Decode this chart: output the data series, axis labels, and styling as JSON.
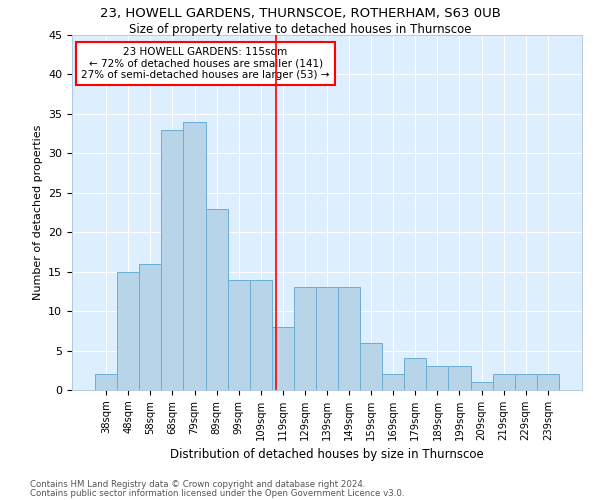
{
  "title1": "23, HOWELL GARDENS, THURNSCOE, ROTHERHAM, S63 0UB",
  "title2": "Size of property relative to detached houses in Thurnscoe",
  "xlabel": "Distribution of detached houses by size in Thurnscoe",
  "ylabel": "Number of detached properties",
  "bar_values": [
    2,
    15,
    16,
    33,
    34,
    23,
    14,
    14,
    8,
    13,
    13,
    13,
    6,
    2,
    4,
    3,
    3,
    1,
    2,
    2,
    2
  ],
  "bin_labels": [
    "38sqm",
    "48sqm",
    "58sqm",
    "68sqm",
    "79sqm",
    "89sqm",
    "99sqm",
    "109sqm",
    "119sqm",
    "129sqm",
    "139sqm",
    "149sqm",
    "159sqm",
    "169sqm",
    "179sqm",
    "189sqm",
    "199sqm",
    "209sqm",
    "219sqm",
    "229sqm",
    "239sqm"
  ],
  "bar_color": "#b8d4e8",
  "bar_edge_color": "#6aaed6",
  "background_color": "#ddeeff",
  "vline_x_index": 7.7,
  "annotation_title": "23 HOWELL GARDENS: 115sqm",
  "annotation_line1": "← 72% of detached houses are smaller (141)",
  "annotation_line2": "27% of semi-detached houses are larger (53) →",
  "footer1": "Contains HM Land Registry data © Crown copyright and database right 2024.",
  "footer2": "Contains public sector information licensed under the Open Government Licence v3.0.",
  "ylim": [
    0,
    45
  ],
  "yticks": [
    0,
    5,
    10,
    15,
    20,
    25,
    30,
    35,
    40,
    45
  ]
}
